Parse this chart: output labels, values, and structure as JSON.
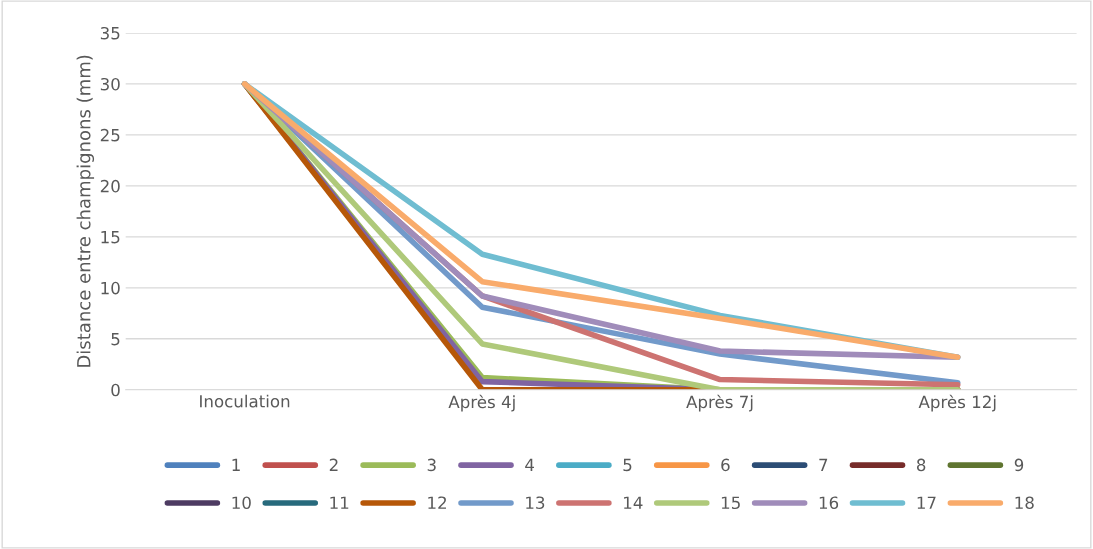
{
  "chart_data": {
    "type": "line",
    "ylabel": "Distance entre champignons (mm)",
    "categories": [
      "Inoculation",
      "Après 4j",
      "Après 7j",
      "Après 12j"
    ],
    "ylim": [
      0,
      35
    ],
    "yticks": [
      0,
      5,
      10,
      15,
      20,
      25,
      30,
      35
    ],
    "grid": "y",
    "legend": "bottom",
    "marker": "none",
    "line_style": "solid",
    "series": [
      {
        "name": "1",
        "color": "#4f81bd",
        "values": [
          null,
          null,
          null,
          null
        ]
      },
      {
        "name": "2",
        "color": "#c0504d",
        "values": [
          null,
          null,
          null,
          null
        ]
      },
      {
        "name": "3",
        "color": "#9bbb59",
        "values": [
          30,
          1.2,
          0,
          0
        ]
      },
      {
        "name": "4",
        "color": "#8064a2",
        "values": [
          30,
          0.8,
          0,
          0
        ]
      },
      {
        "name": "5",
        "color": "#4bacc6",
        "values": [
          null,
          null,
          null,
          null
        ]
      },
      {
        "name": "6",
        "color": "#f79646",
        "values": [
          null,
          null,
          null,
          null
        ]
      },
      {
        "name": "7",
        "color": "#2c4d75",
        "values": [
          null,
          null,
          null,
          null
        ]
      },
      {
        "name": "8",
        "color": "#772c2a",
        "values": [
          null,
          null,
          null,
          null
        ]
      },
      {
        "name": "9",
        "color": "#5f7530",
        "values": [
          null,
          null,
          null,
          null
        ]
      },
      {
        "name": "10",
        "color": "#4d3b62",
        "values": [
          null,
          null,
          null,
          null
        ]
      },
      {
        "name": "11",
        "color": "#276a7c",
        "values": [
          null,
          null,
          null,
          null
        ]
      },
      {
        "name": "12",
        "color": "#b65708",
        "values": [
          30,
          0,
          0,
          0
        ]
      },
      {
        "name": "13",
        "color": "#729aca",
        "values": [
          30,
          8.1,
          3.5,
          0.7
        ]
      },
      {
        "name": "14",
        "color": "#cd7371",
        "values": [
          30,
          9.2,
          1.0,
          0.5
        ]
      },
      {
        "name": "15",
        "color": "#afc97a",
        "values": [
          30,
          4.5,
          0,
          0
        ]
      },
      {
        "name": "16",
        "color": "#a08cba",
        "values": [
          30,
          9.2,
          3.8,
          3.2
        ]
      },
      {
        "name": "17",
        "color": "#6fbdd1",
        "values": [
          30,
          13.3,
          7.3,
          3.2
        ]
      },
      {
        "name": "18",
        "color": "#f9ab6b",
        "values": [
          30,
          10.6,
          7.0,
          3.2
        ]
      }
    ]
  }
}
